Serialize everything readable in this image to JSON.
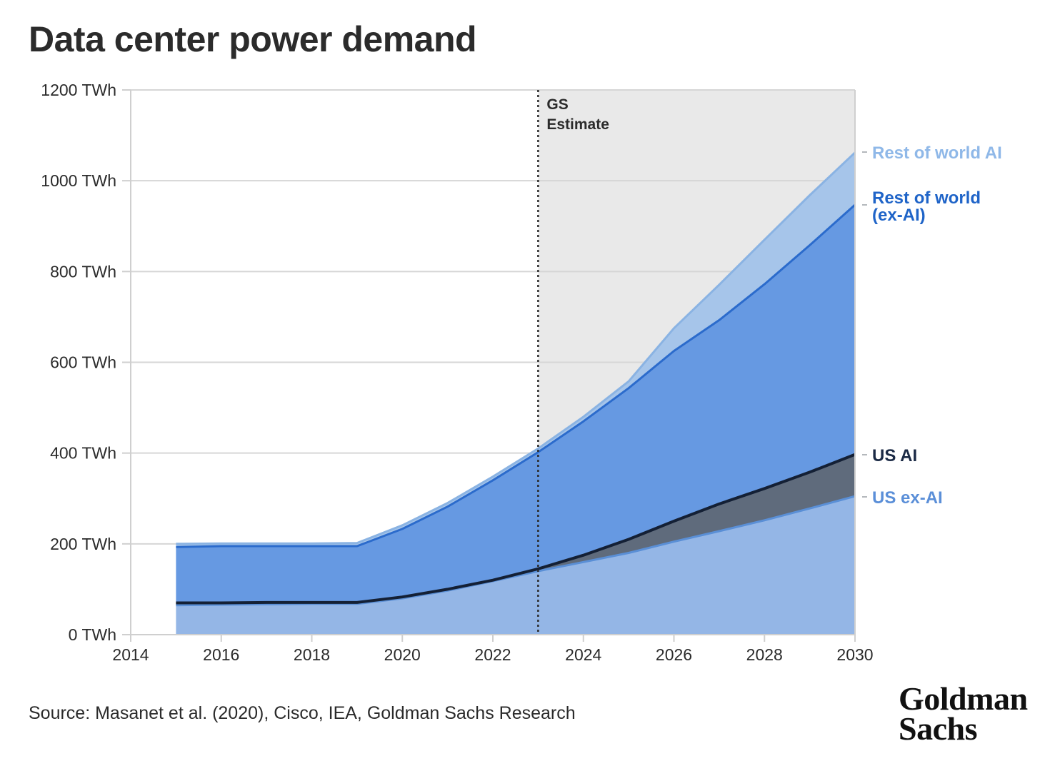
{
  "title": "Data center power demand",
  "source": "Source: Masanet et al. (2020), Cisco, IEA, Goldman Sachs Research",
  "logo": {
    "line1": "Goldman",
    "line2": "Sachs"
  },
  "chart_data": {
    "type": "area",
    "stacked": true,
    "x_range": [
      2014,
      2030
    ],
    "x_ticks": [
      "2014",
      "2016",
      "2018",
      "2020",
      "2022",
      "2024",
      "2026",
      "2028",
      "2030"
    ],
    "y_range": [
      0,
      1200
    ],
    "y_ticks": [
      "0 TWh",
      "200 TWh",
      "400 TWh",
      "600 TWh",
      "800 TWh",
      "1000 TWh",
      "1200 TWh"
    ],
    "grid": true,
    "estimate_start": 2023,
    "estimate_label": [
      "GS",
      "Estimate"
    ],
    "years": [
      2015,
      2016,
      2017,
      2018,
      2019,
      2020,
      2021,
      2022,
      2023,
      2024,
      2025,
      2026,
      2027,
      2028,
      2029,
      2030
    ],
    "series": [
      {
        "name": "US ex-AI",
        "label": [
          "US ex-AI"
        ],
        "fill": "#94b6e6",
        "line": "#5a8fd6",
        "label_color": "#5b8fd8",
        "values": [
          65,
          66,
          67,
          68,
          68,
          80,
          97,
          118,
          140,
          160,
          180,
          205,
          228,
          252,
          278,
          305
        ]
      },
      {
        "name": "US AI",
        "label": [
          "US AI"
        ],
        "fill": "#5f6b7c",
        "line": "#142035",
        "label_color": "#1b2a45",
        "values": [
          5,
          4,
          4,
          3,
          3,
          3,
          3,
          2,
          5,
          15,
          30,
          45,
          60,
          70,
          80,
          92
        ]
      },
      {
        "name": "Rest of world (ex-AI)",
        "label": [
          "Rest of world",
          "(ex-AI)"
        ],
        "fill": "#6699e2",
        "line": "#2b6bcc",
        "label_color": "#1f64c8",
        "values": [
          123,
          125,
          124,
          124,
          124,
          150,
          182,
          220,
          257,
          295,
          333,
          375,
          405,
          450,
          500,
          550
        ]
      },
      {
        "name": "Rest of world AI",
        "label": [
          "Rest of world AI"
        ],
        "fill": "#a6c5ea",
        "line": "#8ab3e3",
        "label_color": "#8fb8e8",
        "values": [
          7,
          6,
          6,
          6,
          7,
          8,
          8,
          8,
          8,
          10,
          15,
          50,
          78,
          98,
          110,
          115
        ]
      }
    ]
  }
}
